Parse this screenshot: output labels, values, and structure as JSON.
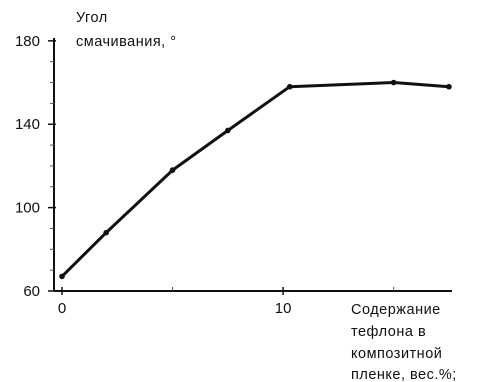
{
  "chart_data": {
    "type": "line",
    "ylabel_lines": [
      "Угол",
      "смачивания, °"
    ],
    "xlabel_lines": [
      "Содержание",
      "тефлона в",
      "композитной",
      "пленке, вес.%;"
    ],
    "xlim": [
      0,
      18
    ],
    "ylim": [
      60,
      190
    ],
    "x_ticks": [
      0,
      10
    ],
    "y_ticks": [
      60,
      100,
      140,
      180
    ],
    "grid": false,
    "series": [
      {
        "x": [
          0,
          2,
          5,
          7.5,
          10.3,
          15,
          17.5
        ],
        "y": [
          67,
          88,
          118,
          137,
          158,
          160,
          158
        ]
      }
    ]
  }
}
